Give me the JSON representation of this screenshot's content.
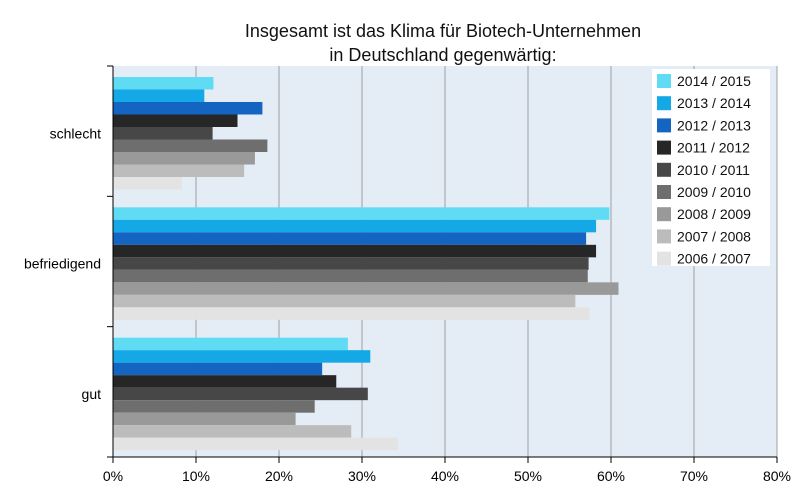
{
  "chart_data": {
    "type": "bar",
    "orientation": "horizontal",
    "title_lines": [
      "Insgesamt ist das Klima für Biotech-Unternehmen",
      "in Deutschland gegenwärtig:"
    ],
    "categories": [
      "schlecht",
      "befriedigend",
      "gut"
    ],
    "x_ticks": [
      "0%",
      "10%",
      "20%",
      "30%",
      "40%",
      "50%",
      "60%",
      "70%",
      "80%"
    ],
    "xlim": [
      0,
      80
    ],
    "legend_position": "top-right",
    "series": [
      {
        "name": "2014 / 2015",
        "color": "#5fdcf4",
        "values": [
          12.1,
          59.8,
          28.3
        ]
      },
      {
        "name": "2013 / 2014",
        "color": "#14a9e6",
        "values": [
          11.0,
          58.2,
          31.0
        ]
      },
      {
        "name": "2012 / 2013",
        "color": "#1464c2",
        "values": [
          18.0,
          57.0,
          25.2
        ]
      },
      {
        "name": "2011 / 2012",
        "color": "#262626",
        "values": [
          15.0,
          58.2,
          26.9
        ]
      },
      {
        "name": "2010 / 2011",
        "color": "#474747",
        "values": [
          12.0,
          57.3,
          30.7
        ]
      },
      {
        "name": "2009 / 2010",
        "color": "#6e6e6e",
        "values": [
          18.6,
          57.2,
          24.3
        ]
      },
      {
        "name": "2008 / 2009",
        "color": "#999999",
        "values": [
          17.1,
          60.9,
          22.0
        ]
      },
      {
        "name": "2007 / 2008",
        "color": "#bcbcbc",
        "values": [
          15.8,
          55.7,
          28.7
        ]
      },
      {
        "name": "2006 / 2007",
        "color": "#e3e3e3",
        "values": [
          8.3,
          57.4,
          34.3
        ]
      }
    ]
  }
}
